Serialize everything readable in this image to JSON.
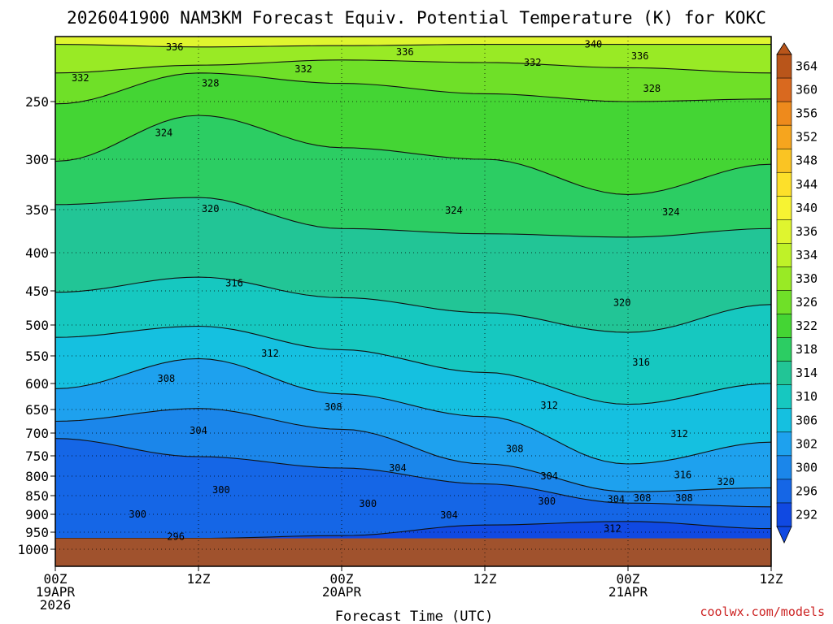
{
  "chart_data": {
    "type": "heatmap",
    "title": "2026041900 NAM3KM Forecast Equiv. Potential Temperature (K) for KOKC",
    "xlabel": "Forecast Time (UTC)",
    "ylabel": "",
    "credit": "coolwx.com/models",
    "x_hours": [
      0,
      12,
      24,
      36,
      48,
      60
    ],
    "x_tick_labels": [
      {
        "hour": 0,
        "lines": [
          "00Z",
          "19APR",
          "2026"
        ]
      },
      {
        "hour": 12,
        "lines": [
          "12Z"
        ]
      },
      {
        "hour": 24,
        "lines": [
          "00Z",
          "20APR"
        ]
      },
      {
        "hour": 36,
        "lines": [
          "12Z"
        ]
      },
      {
        "hour": 48,
        "lines": [
          "00Z",
          "21APR"
        ]
      },
      {
        "hour": 60,
        "lines": [
          "12Z"
        ]
      }
    ],
    "y_levels": [
      250,
      300,
      350,
      400,
      450,
      500,
      550,
      600,
      650,
      700,
      750,
      800,
      850,
      900,
      950,
      1000
    ],
    "y_tick_labels": [
      "250",
      "300",
      "350",
      "400",
      "450",
      "500",
      "550",
      "600",
      "650",
      "700",
      "750",
      "800",
      "850",
      "900",
      "950",
      "1000"
    ],
    "xlim": [
      0,
      60
    ],
    "ylim": [
      1000,
      200
    ],
    "ground_level_hpa": 968,
    "colorbar": {
      "levels": [
        364,
        360,
        356,
        352,
        348,
        344,
        340,
        336,
        334,
        330,
        326,
        322,
        318,
        314,
        310,
        306,
        302,
        300,
        296,
        292
      ],
      "colors": [
        "#b9551a",
        "#d9691f",
        "#ee8a1c",
        "#f6a51e",
        "#fac423",
        "#fde02a",
        "#f7f332",
        "#dff52f",
        "#bff228",
        "#99ea25",
        "#6fe028",
        "#44d534",
        "#2ccd63",
        "#22c596",
        "#16c8c0",
        "#15c0e0",
        "#1ea1ee",
        "#1b86ea",
        "#1566e6",
        "#1049e2"
      ]
    },
    "contours": [
      {
        "value": 336,
        "hpa": [
          206,
          208,
          207,
          206,
          206,
          206
        ]
      },
      {
        "value": 332,
        "hpa": [
          228,
          222,
          218,
          220,
          224,
          228
        ]
      },
      {
        "value": 328,
        "hpa": [
          252,
          228,
          236,
          244,
          250,
          248
        ]
      },
      {
        "value": 324,
        "hpa": [
          302,
          262,
          290,
          300,
          335,
          305
        ]
      },
      {
        "value": 320,
        "hpa": [
          345,
          338,
          372,
          378,
          382,
          372
        ]
      },
      {
        "value": 316,
        "hpa": [
          452,
          432,
          460,
          482,
          512,
          470
        ]
      },
      {
        "value": 312,
        "hpa": [
          520,
          502,
          540,
          580,
          640,
          600
        ]
      },
      {
        "value": 308,
        "hpa": [
          610,
          555,
          620,
          665,
          770,
          720
        ]
      },
      {
        "value": 304,
        "hpa": [
          675,
          648,
          692,
          770,
          840,
          830
        ]
      },
      {
        "value": 300,
        "hpa": [
          712,
          752,
          780,
          820,
          870,
          880
        ]
      },
      {
        "value": 296,
        "hpa": [
          968,
          968,
          960,
          930,
          920,
          940
        ]
      }
    ],
    "contour_labels": [
      {
        "text": "336",
        "hour": 10.0,
        "hpa": 208
      },
      {
        "text": "336",
        "hour": 29.3,
        "hpa": 212
      },
      {
        "text": "340",
        "hour": 45.1,
        "hpa": 206
      },
      {
        "text": "336",
        "hour": 49.0,
        "hpa": 215
      },
      {
        "text": "332",
        "hour": 2.1,
        "hpa": 232
      },
      {
        "text": "332",
        "hour": 20.8,
        "hpa": 225
      },
      {
        "text": "332",
        "hour": 40.0,
        "hpa": 220
      },
      {
        "text": "328",
        "hour": 13.0,
        "hpa": 236
      },
      {
        "text": "328",
        "hour": 50.0,
        "hpa": 240
      },
      {
        "text": "324",
        "hour": 9.1,
        "hpa": 277
      },
      {
        "text": "324",
        "hour": 33.4,
        "hpa": 351
      },
      {
        "text": "324",
        "hour": 51.6,
        "hpa": 353
      },
      {
        "text": "320",
        "hour": 13.0,
        "hpa": 349
      },
      {
        "text": "320",
        "hour": 47.5,
        "hpa": 467
      },
      {
        "text": "316",
        "hour": 15.0,
        "hpa": 440
      },
      {
        "text": "316",
        "hour": 49.1,
        "hpa": 562
      },
      {
        "text": "312",
        "hour": 18.0,
        "hpa": 546
      },
      {
        "text": "312",
        "hour": 41.4,
        "hpa": 642
      },
      {
        "text": "312",
        "hour": 52.3,
        "hpa": 702
      },
      {
        "text": "308",
        "hour": 9.3,
        "hpa": 591
      },
      {
        "text": "308",
        "hour": 23.3,
        "hpa": 645
      },
      {
        "text": "308",
        "hour": 38.5,
        "hpa": 735
      },
      {
        "text": "304",
        "hour": 12.0,
        "hpa": 695
      },
      {
        "text": "304",
        "hour": 28.7,
        "hpa": 780
      },
      {
        "text": "304",
        "hour": 41.4,
        "hpa": 800
      },
      {
        "text": "304",
        "hour": 33.0,
        "hpa": 902
      },
      {
        "text": "304",
        "hour": 47.0,
        "hpa": 860
      },
      {
        "text": "308",
        "hour": 49.2,
        "hpa": 857
      },
      {
        "text": "308",
        "hour": 52.7,
        "hpa": 857
      },
      {
        "text": "316",
        "hour": 52.6,
        "hpa": 797
      },
      {
        "text": "320",
        "hour": 56.2,
        "hpa": 815
      },
      {
        "text": "312",
        "hour": 46.7,
        "hpa": 940
      },
      {
        "text": "300",
        "hour": 13.9,
        "hpa": 835
      },
      {
        "text": "300",
        "hour": 6.9,
        "hpa": 900
      },
      {
        "text": "300",
        "hour": 26.2,
        "hpa": 872
      },
      {
        "text": "300",
        "hour": 41.2,
        "hpa": 865
      },
      {
        "text": "296",
        "hour": 10.1,
        "hpa": 963
      }
    ]
  }
}
